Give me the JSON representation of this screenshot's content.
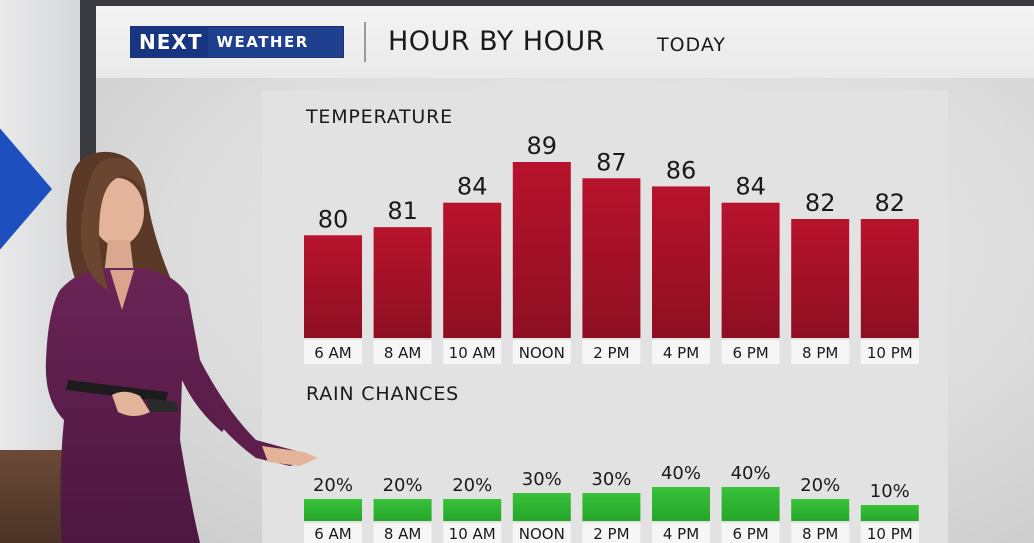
{
  "header": {
    "logo_next": "NEXT",
    "logo_weather": "WEATHER",
    "title": "HOUR BY HOUR",
    "subtitle": "TODAY"
  },
  "chart_data": [
    {
      "type": "bar",
      "title": "TEMPERATURE",
      "categories": [
        "6 AM",
        "8 AM",
        "10 AM",
        "NOON",
        "2 PM",
        "4 PM",
        "6 PM",
        "8 PM",
        "10 PM"
      ],
      "values": [
        80,
        81,
        84,
        89,
        87,
        86,
        84,
        82,
        82
      ],
      "value_labels": [
        "80",
        "81",
        "84",
        "89",
        "87",
        "86",
        "84",
        "82",
        "82"
      ],
      "ylim": [
        75,
        89
      ],
      "grid": false,
      "color": "#b3142c"
    },
    {
      "type": "bar",
      "title": "RAIN CHANCES",
      "categories": [
        "6 AM",
        "8 AM",
        "10 AM",
        "NOON",
        "2 PM",
        "4 PM",
        "6 PM",
        "8 PM",
        "10 PM"
      ],
      "values": [
        20,
        20,
        20,
        30,
        30,
        40,
        40,
        20,
        10
      ],
      "value_labels": [
        "20%",
        "20%",
        "20%",
        "30%",
        "30%",
        "40%",
        "40%",
        "20%",
        "10%"
      ],
      "ylim": [
        0,
        40
      ],
      "grid": false,
      "color": "#2fb52f"
    }
  ]
}
